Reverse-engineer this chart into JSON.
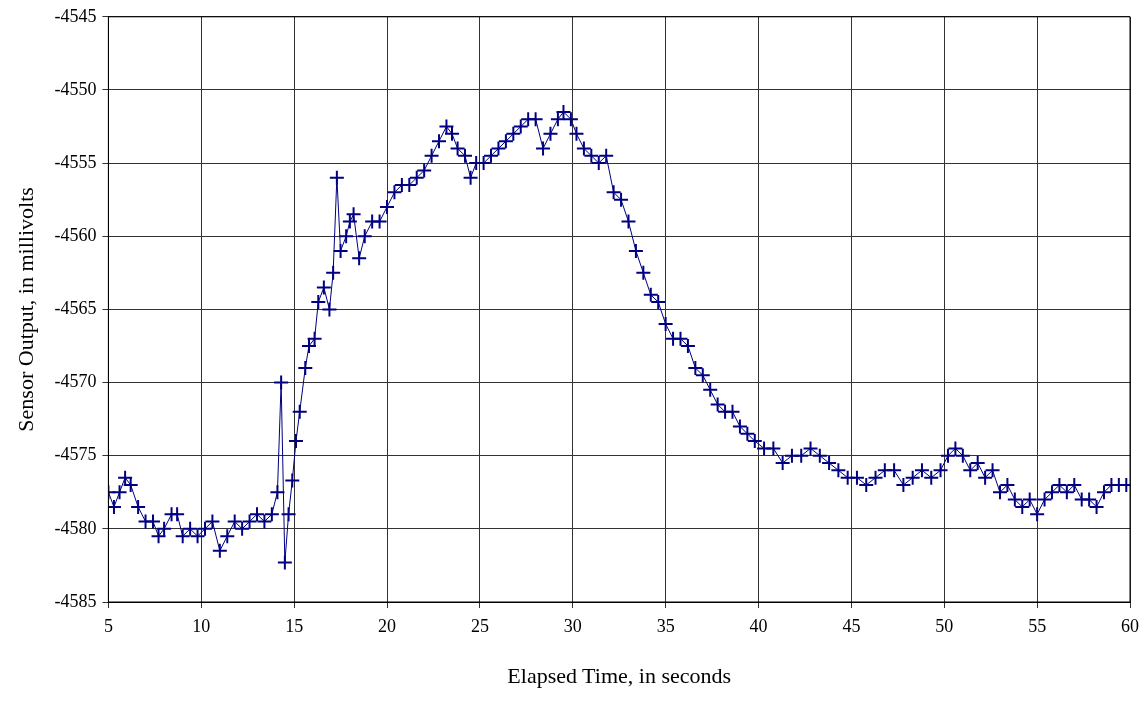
{
  "chart_data": {
    "type": "line",
    "xlabel": "Elapsed Time, in seconds",
    "ylabel": "Sensor Output, in millivolts",
    "xlim": [
      5,
      60
    ],
    "xticks": [
      5,
      10,
      15,
      20,
      25,
      30,
      35,
      40,
      45,
      50,
      55,
      60
    ],
    "ylim": [
      -4585,
      -4545
    ],
    "yticks": [
      -4585,
      -4580,
      -4575,
      -4570,
      -4565,
      -4560,
      -4555,
      -4550,
      -4545
    ],
    "grid": true,
    "marker": "cross",
    "line_style": "solid",
    "series": [
      {
        "color": "#000080",
        "x": [
          5.0,
          5.3,
          5.6,
          5.9,
          6.2,
          6.6,
          7.0,
          7.4,
          7.7,
          8.0,
          8.4,
          8.7,
          9.0,
          9.4,
          9.8,
          10.2,
          10.6,
          11.0,
          11.4,
          11.8,
          12.2,
          12.6,
          13.0,
          13.4,
          13.8,
          14.1,
          14.3,
          14.5,
          14.7,
          14.9,
          15.1,
          15.3,
          15.6,
          15.8,
          16.1,
          16.3,
          16.6,
          16.9,
          17.1,
          17.3,
          17.5,
          17.8,
          18.0,
          18.2,
          18.5,
          18.8,
          19.2,
          19.6,
          20.0,
          20.4,
          20.8,
          21.2,
          21.6,
          22.0,
          22.4,
          22.8,
          23.2,
          23.5,
          23.8,
          24.2,
          24.5,
          24.8,
          25.2,
          25.6,
          26.0,
          26.4,
          26.8,
          27.2,
          27.6,
          28.0,
          28.4,
          28.8,
          29.2,
          29.5,
          29.9,
          30.2,
          30.6,
          31.0,
          31.4,
          31.8,
          32.2,
          32.6,
          33.0,
          33.4,
          33.8,
          34.2,
          34.6,
          35.0,
          35.4,
          35.8,
          36.2,
          36.6,
          37.0,
          37.4,
          37.8,
          38.2,
          38.6,
          39.0,
          39.4,
          39.8,
          40.3,
          40.8,
          41.3,
          41.8,
          42.3,
          42.8,
          43.3,
          43.8,
          44.3,
          44.8,
          45.3,
          45.8,
          46.3,
          46.8,
          47.3,
          47.8,
          48.3,
          48.8,
          49.3,
          49.8,
          50.2,
          50.6,
          51.0,
          51.4,
          51.8,
          52.2,
          52.6,
          53.0,
          53.4,
          53.8,
          54.2,
          54.6,
          55.0,
          55.4,
          55.8,
          56.2,
          56.6,
          57.0,
          57.4,
          57.8,
          58.2,
          58.6,
          59.0,
          59.4,
          59.8
        ],
        "values": [
          -4577.5,
          -4578.5,
          -4577.5,
          -4576.5,
          -4577,
          -4578.5,
          -4579.5,
          -4579.5,
          -4580.5,
          -4580,
          -4579,
          -4579,
          -4580.5,
          -4580,
          -4580.5,
          -4580,
          -4579.5,
          -4581.5,
          -4580.5,
          -4579.5,
          -4580,
          -4579.5,
          -4579,
          -4579.5,
          -4579,
          -4577.5,
          -4570,
          -4582.3,
          -4579,
          -4576.7,
          -4574,
          -4572,
          -4569,
          -4567.5,
          -4567,
          -4564.5,
          -4563.5,
          -4565,
          -4562.5,
          -4556,
          -4561,
          -4560,
          -4559,
          -4558.5,
          -4561.5,
          -4560,
          -4559,
          -4559,
          -4558,
          -4557,
          -4556.5,
          -4556.5,
          -4556,
          -4555.5,
          -4554.5,
          -4553.5,
          -4552.5,
          -4553,
          -4554,
          -4554.5,
          -4556,
          -4555,
          -4555,
          -4554.5,
          -4554,
          -4553.5,
          -4553,
          -4552.5,
          -4552,
          -4552,
          -4554,
          -4553,
          -4552,
          -4551.5,
          -4552,
          -4553,
          -4554,
          -4554.5,
          -4555,
          -4554.5,
          -4557,
          -4557.5,
          -4559,
          -4561,
          -4562.5,
          -4564,
          -4564.5,
          -4566,
          -4567,
          -4567,
          -4567.5,
          -4569,
          -4569.5,
          -4570.5,
          -4571.5,
          -4572,
          -4572,
          -4573,
          -4573.5,
          -4574,
          -4574.5,
          -4574.5,
          -4575.5,
          -4575,
          -4575,
          -4574.5,
          -4575,
          -4575.5,
          -4576,
          -4576.5,
          -4576.5,
          -4577,
          -4576.5,
          -4576,
          -4576,
          -4577,
          -4576.5,
          -4576,
          -4576.5,
          -4576,
          -4575,
          -4574.5,
          -4575,
          -4576,
          -4575.5,
          -4576.5,
          -4576,
          -4577.5,
          -4577,
          -4578,
          -4578.5,
          -4578,
          -4579,
          -4578,
          -4577.5,
          -4577,
          -4577.5,
          -4577,
          -4578,
          -4578,
          -4578.5,
          -4577.5,
          -4577,
          -4577,
          -4577
        ]
      }
    ]
  }
}
